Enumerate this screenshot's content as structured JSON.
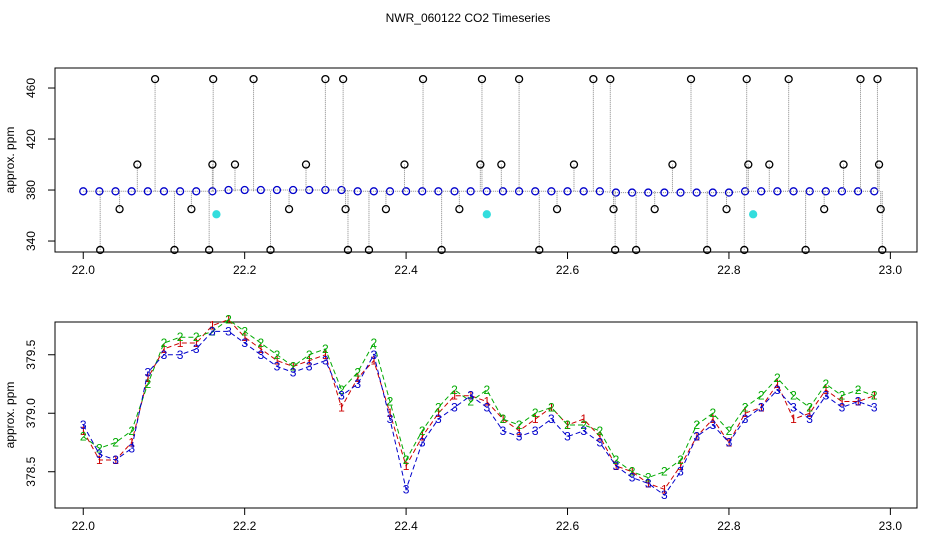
{
  "title": "NWR_060122  CO2 Timeseries",
  "chart_data": [
    {
      "type": "scatter",
      "ylabel": "approx. ppm",
      "xlim": [
        21.965,
        23.033
      ],
      "ylim": [
        331.4,
        475.7
      ],
      "xticks": [
        {
          "value": 22.0,
          "label": "22.0"
        },
        {
          "value": 22.2,
          "label": "22.2"
        },
        {
          "value": 22.4,
          "label": "22.4"
        },
        {
          "value": 22.6,
          "label": "22.6"
        },
        {
          "value": 22.8,
          "label": "22.8"
        },
        {
          "value": 23.0,
          "label": "23.0"
        }
      ],
      "yticks": [
        340,
        380,
        420,
        460
      ],
      "series": [
        {
          "color": "#0000cc",
          "filled": false,
          "x": [
            22.0,
            22.02,
            22.04,
            22.06,
            22.08,
            22.1,
            22.12,
            22.14,
            22.16,
            22.18,
            22.2,
            22.22,
            22.24,
            22.26,
            22.28,
            22.3,
            22.32,
            22.34,
            22.36,
            22.38,
            22.4,
            22.42,
            22.44,
            22.46,
            22.48,
            22.5,
            22.52,
            22.54,
            22.56,
            22.58,
            22.6,
            22.62,
            22.64,
            22.66,
            22.68,
            22.7,
            22.72,
            22.74,
            22.76,
            22.78,
            22.8,
            22.82,
            22.84,
            22.86,
            22.88,
            22.9,
            22.92,
            22.94,
            22.96,
            22.98
          ],
          "values": [
            379,
            379,
            379,
            379,
            379,
            379,
            379,
            379,
            379,
            380,
            380,
            380,
            380,
            380,
            380,
            380,
            380,
            379,
            379,
            379,
            379,
            379,
            379,
            379,
            379,
            379,
            379,
            379,
            379,
            379,
            379,
            379,
            379,
            378,
            378,
            378,
            378,
            378,
            378,
            378,
            378,
            379,
            379,
            379,
            379,
            379,
            379,
            379,
            379,
            379
          ]
        },
        {
          "color": "#000000",
          "filled": false,
          "x": [
            22.021,
            22.045,
            22.067,
            22.089,
            22.113,
            22.134,
            22.156,
            22.16,
            22.161,
            22.188,
            22.211,
            22.232,
            22.255,
            22.276,
            22.3,
            22.322,
            22.325,
            22.328,
            22.354,
            22.375,
            22.398,
            22.421,
            22.444,
            22.466,
            22.492,
            22.494,
            22.518,
            22.54,
            22.565,
            22.587,
            22.608,
            22.632,
            22.653,
            22.657,
            22.659,
            22.685,
            22.708,
            22.73,
            22.753,
            22.773,
            22.797,
            22.819,
            22.822,
            22.824,
            22.85,
            22.874,
            22.895,
            22.918,
            22.942,
            22.963,
            22.984,
            22.986,
            22.988,
            22.99
          ],
          "values": [
            333,
            365,
            400,
            467,
            333,
            365,
            333,
            400,
            467,
            400,
            467,
            333,
            365,
            400,
            467,
            467,
            365,
            333,
            333,
            365,
            400,
            467,
            333,
            365,
            400,
            467,
            400,
            467,
            333,
            365,
            400,
            467,
            467,
            365,
            333,
            333,
            365,
            400,
            467,
            333,
            365,
            333,
            467,
            400,
            400,
            467,
            333,
            365,
            400,
            467,
            467,
            400,
            365,
            333
          ]
        },
        {
          "color": "#33dddd",
          "filled": true,
          "x": [
            22.165,
            22.5,
            22.83
          ],
          "values": [
            361,
            361,
            361
          ]
        }
      ]
    },
    {
      "type": "line",
      "ylabel": "approx. ppm",
      "xlim": [
        21.965,
        23.033
      ],
      "ylim": [
        378.19,
        379.78
      ],
      "xticks": [
        {
          "value": 22.0,
          "label": "22.0"
        },
        {
          "value": 22.2,
          "label": "22.2"
        },
        {
          "value": 22.4,
          "label": "22.4"
        },
        {
          "value": 22.6,
          "label": "22.6"
        },
        {
          "value": 22.8,
          "label": "22.8"
        },
        {
          "value": 23.0,
          "label": "23.0"
        }
      ],
      "yticks": [
        378.5,
        {
          "value": 379.0,
          "label": "379.0"
        },
        379.5
      ],
      "x": [
        22.0,
        22.02,
        22.04,
        22.06,
        22.08,
        22.1,
        22.12,
        22.14,
        22.16,
        22.18,
        22.2,
        22.22,
        22.24,
        22.26,
        22.28,
        22.3,
        22.32,
        22.34,
        22.36,
        22.38,
        22.4,
        22.42,
        22.44,
        22.46,
        22.48,
        22.5,
        22.52,
        22.54,
        22.56,
        22.58,
        22.6,
        22.62,
        22.64,
        22.66,
        22.68,
        22.7,
        22.72,
        22.74,
        22.76,
        22.78,
        22.8,
        22.82,
        22.84,
        22.86,
        22.88,
        22.9,
        22.92,
        22.94,
        22.96,
        22.98
      ],
      "series": [
        {
          "symbol": "1",
          "color": "#cc0000",
          "values": [
            378.85,
            378.6,
            378.6,
            378.75,
            379.3,
            379.55,
            379.6,
            379.6,
            379.75,
            379.8,
            379.65,
            379.55,
            379.45,
            379.4,
            379.45,
            379.5,
            379.05,
            379.3,
            379.45,
            379.0,
            378.55,
            378.8,
            379.0,
            379.15,
            379.15,
            379.1,
            378.95,
            378.85,
            378.95,
            379.05,
            378.9,
            378.95,
            378.8,
            378.55,
            378.5,
            378.4,
            378.35,
            378.55,
            378.8,
            378.95,
            378.75,
            379.0,
            379.05,
            379.25,
            378.95,
            379.0,
            379.2,
            379.1,
            379.1,
            379.15
          ]
        },
        {
          "symbol": "2",
          "color": "#00aa00",
          "values": [
            378.8,
            378.7,
            378.75,
            378.85,
            379.25,
            379.6,
            379.65,
            379.65,
            379.7,
            379.8,
            379.7,
            379.6,
            379.5,
            379.4,
            379.5,
            379.55,
            379.2,
            379.35,
            379.6,
            379.1,
            378.6,
            378.85,
            379.05,
            379.2,
            379.1,
            379.2,
            378.95,
            378.9,
            379.0,
            379.05,
            378.9,
            378.9,
            378.85,
            378.6,
            378.5,
            378.45,
            378.5,
            378.6,
            378.9,
            379.0,
            378.85,
            379.05,
            379.15,
            379.3,
            379.15,
            379.05,
            379.25,
            379.15,
            379.2,
            379.15
          ]
        },
        {
          "symbol": "3",
          "color": "#0000cc",
          "values": [
            378.9,
            378.65,
            378.6,
            378.7,
            379.35,
            379.5,
            379.5,
            379.55,
            379.7,
            379.7,
            379.6,
            379.5,
            379.4,
            379.35,
            379.4,
            379.45,
            379.15,
            379.25,
            379.5,
            378.95,
            378.35,
            378.75,
            378.95,
            379.05,
            379.15,
            379.05,
            378.85,
            378.8,
            378.85,
            378.95,
            378.8,
            378.85,
            378.75,
            378.55,
            378.45,
            378.4,
            378.3,
            378.5,
            378.8,
            378.9,
            378.75,
            378.95,
            379.05,
            379.2,
            379.05,
            378.95,
            379.15,
            379.05,
            379.1,
            379.05
          ]
        }
      ]
    }
  ]
}
